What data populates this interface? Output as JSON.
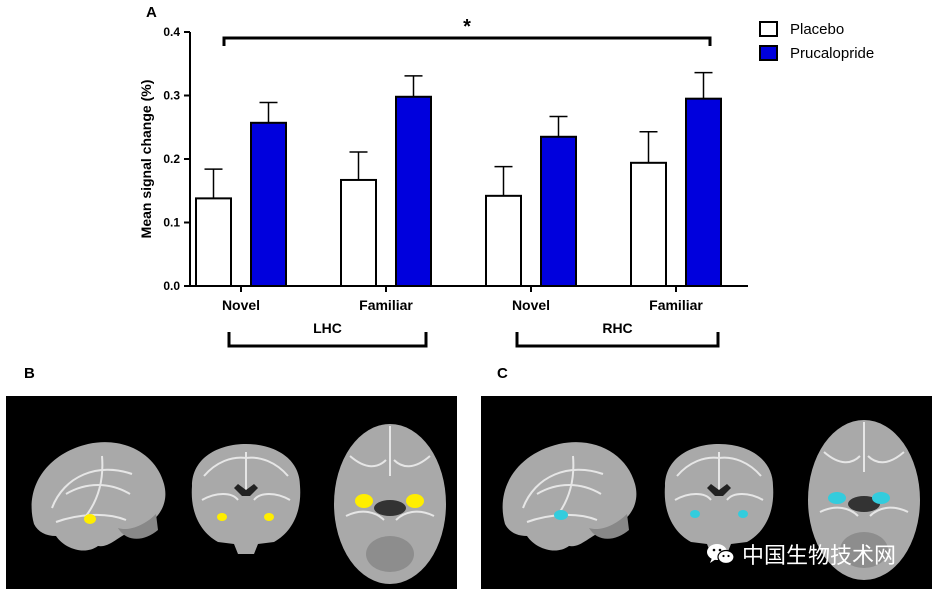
{
  "panels": {
    "a": "A",
    "b": "B",
    "c": "C"
  },
  "chart_data": {
    "type": "bar",
    "ylabel": "Mean signal change (%)",
    "xlabel": "",
    "ylim": [
      0,
      0.4
    ],
    "yticks": [
      "0.0",
      "0.1",
      "0.2",
      "0.3",
      "0.4"
    ],
    "categories": [
      "Novel",
      "Familiar",
      "Novel",
      "Familiar"
    ],
    "groups": [
      "LHC",
      "RHC"
    ],
    "series": [
      {
        "name": "Placebo",
        "color": "#ffffff",
        "values": [
          0.138,
          0.167,
          0.142,
          0.194
        ],
        "errors": [
          0.046,
          0.044,
          0.046,
          0.049
        ]
      },
      {
        "name": "Prucalopride",
        "color": "#0000dd",
        "values": [
          0.257,
          0.298,
          0.235,
          0.295
        ],
        "errors": [
          0.032,
          0.033,
          0.032,
          0.041
        ]
      }
    ],
    "significance": "*",
    "legend_position": "top-right",
    "grid": false
  },
  "brain_panels": {
    "b_highlight_color": "#ffee00",
    "c_highlight_color": "#33ccdd"
  },
  "watermark": {
    "text": "中国生物技术网",
    "icon": "wechat-icon"
  }
}
